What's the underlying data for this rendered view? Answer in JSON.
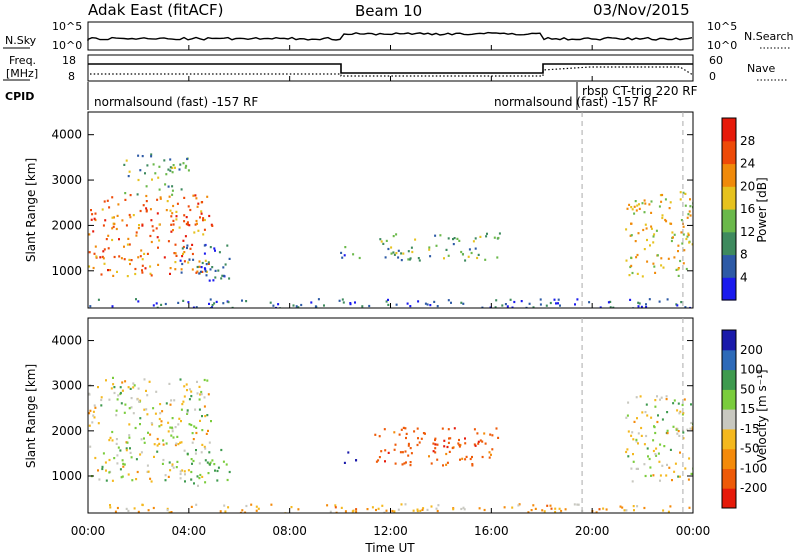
{
  "header": {
    "left_title": "Adak East (fitACF)",
    "center_title": "Beam 10",
    "right_title": "03/Nov/2015"
  },
  "top_panels": {
    "nsky": {
      "label": "N.Sky",
      "ticks": [
        "10^5",
        "10^0"
      ]
    },
    "nsearch": {
      "label": "N.Search",
      "ticks": [
        "10^5",
        "10^0"
      ]
    },
    "freq": {
      "label_line1": "Freq.",
      "label_line2": "[MHz]",
      "ticks": [
        "18",
        "8"
      ]
    },
    "nave": {
      "label": "Nave",
      "ticks": [
        "60",
        "0"
      ]
    },
    "cpid": {
      "label": "CPID",
      "segments": [
        "normalsound (fast) -157 RF",
        "normalsound (fast) -157 RF",
        "rbsp CT-trig 220 RF"
      ]
    }
  },
  "x_axis": {
    "label": "Time UT",
    "ticks": [
      "00:00",
      "04:00",
      "08:00",
      "12:00",
      "16:00",
      "20:00",
      "00:00"
    ]
  },
  "power_colorbar": {
    "label": "Power [dB]",
    "ticks": [
      "4",
      "8",
      "12",
      "16",
      "20",
      "24",
      "28"
    ],
    "colors": [
      "#1a1aee",
      "#2d5aa6",
      "#3e8a5e",
      "#6ab84a",
      "#e6c21e",
      "#f08a0a",
      "#ee4a08",
      "#e61a0a"
    ]
  },
  "velocity_colorbar": {
    "label": "Velocity [m s⁻¹]",
    "ticks": [
      "200",
      "100",
      "50",
      "15",
      "-15",
      "-50",
      "-100",
      "-200"
    ],
    "colors": [
      "#1a1aaa",
      "#2d6ab8",
      "#3e9a4e",
      "#7acc3c",
      "#c8c8c0",
      "#f4b81e",
      "#f48a0a",
      "#ee5a08",
      "#e61a0a"
    ]
  },
  "chart_data": [
    {
      "type": "heatmap",
      "title": "",
      "xlabel": "",
      "ylabel": "Slant Range [km]",
      "xlim": [
        "00:00",
        "24:00"
      ],
      "ylim": [
        180,
        4500
      ],
      "y_ticks": [
        1000,
        2000,
        3000,
        4000
      ],
      "colorbar": "Power [dB]",
      "regions": [
        {
          "t": [
            0.0,
            4.9
          ],
          "r": [
            900,
            2700
          ],
          "value": 26
        },
        {
          "t": [
            1.4,
            4.0
          ],
          "r": [
            2700,
            3600
          ],
          "value": 14
        },
        {
          "t": [
            3.6,
            5.6
          ],
          "r": [
            800,
            1600
          ],
          "value": 8
        },
        {
          "t": [
            10.0,
            10.8
          ],
          "r": [
            1300,
            1600
          ],
          "value": 10
        },
        {
          "t": [
            11.3,
            16.3
          ],
          "r": [
            1250,
            1850
          ],
          "value": 14
        },
        {
          "t": [
            21.3,
            24.0
          ],
          "r": [
            900,
            2800
          ],
          "value": 20
        },
        {
          "t": [
            0.0,
            24.0
          ],
          "r": [
            180,
            400
          ],
          "value": 8
        }
      ]
    },
    {
      "type": "heatmap",
      "title": "",
      "xlabel": "Time UT",
      "ylabel": "Slant Range [km]",
      "xlim": [
        "00:00",
        "24:00"
      ],
      "ylim": [
        180,
        4500
      ],
      "y_ticks": [
        1000,
        2000,
        3000,
        4000
      ],
      "colorbar": "Velocity [m s⁻¹]",
      "regions": [
        {
          "t": [
            0.0,
            4.9
          ],
          "r": [
            900,
            3200
          ],
          "value": 0
        },
        {
          "t": [
            3.6,
            5.6
          ],
          "r": [
            800,
            1600
          ],
          "value": 50
        },
        {
          "t": [
            10.0,
            10.8
          ],
          "r": [
            1300,
            1600
          ],
          "value": 200
        },
        {
          "t": [
            11.3,
            16.3
          ],
          "r": [
            1250,
            2100
          ],
          "value": -150
        },
        {
          "t": [
            21.3,
            24.0
          ],
          "r": [
            900,
            2800
          ],
          "value": 0
        },
        {
          "t": [
            0.0,
            24.0
          ],
          "r": [
            180,
            400
          ],
          "value": -50
        }
      ]
    }
  ]
}
